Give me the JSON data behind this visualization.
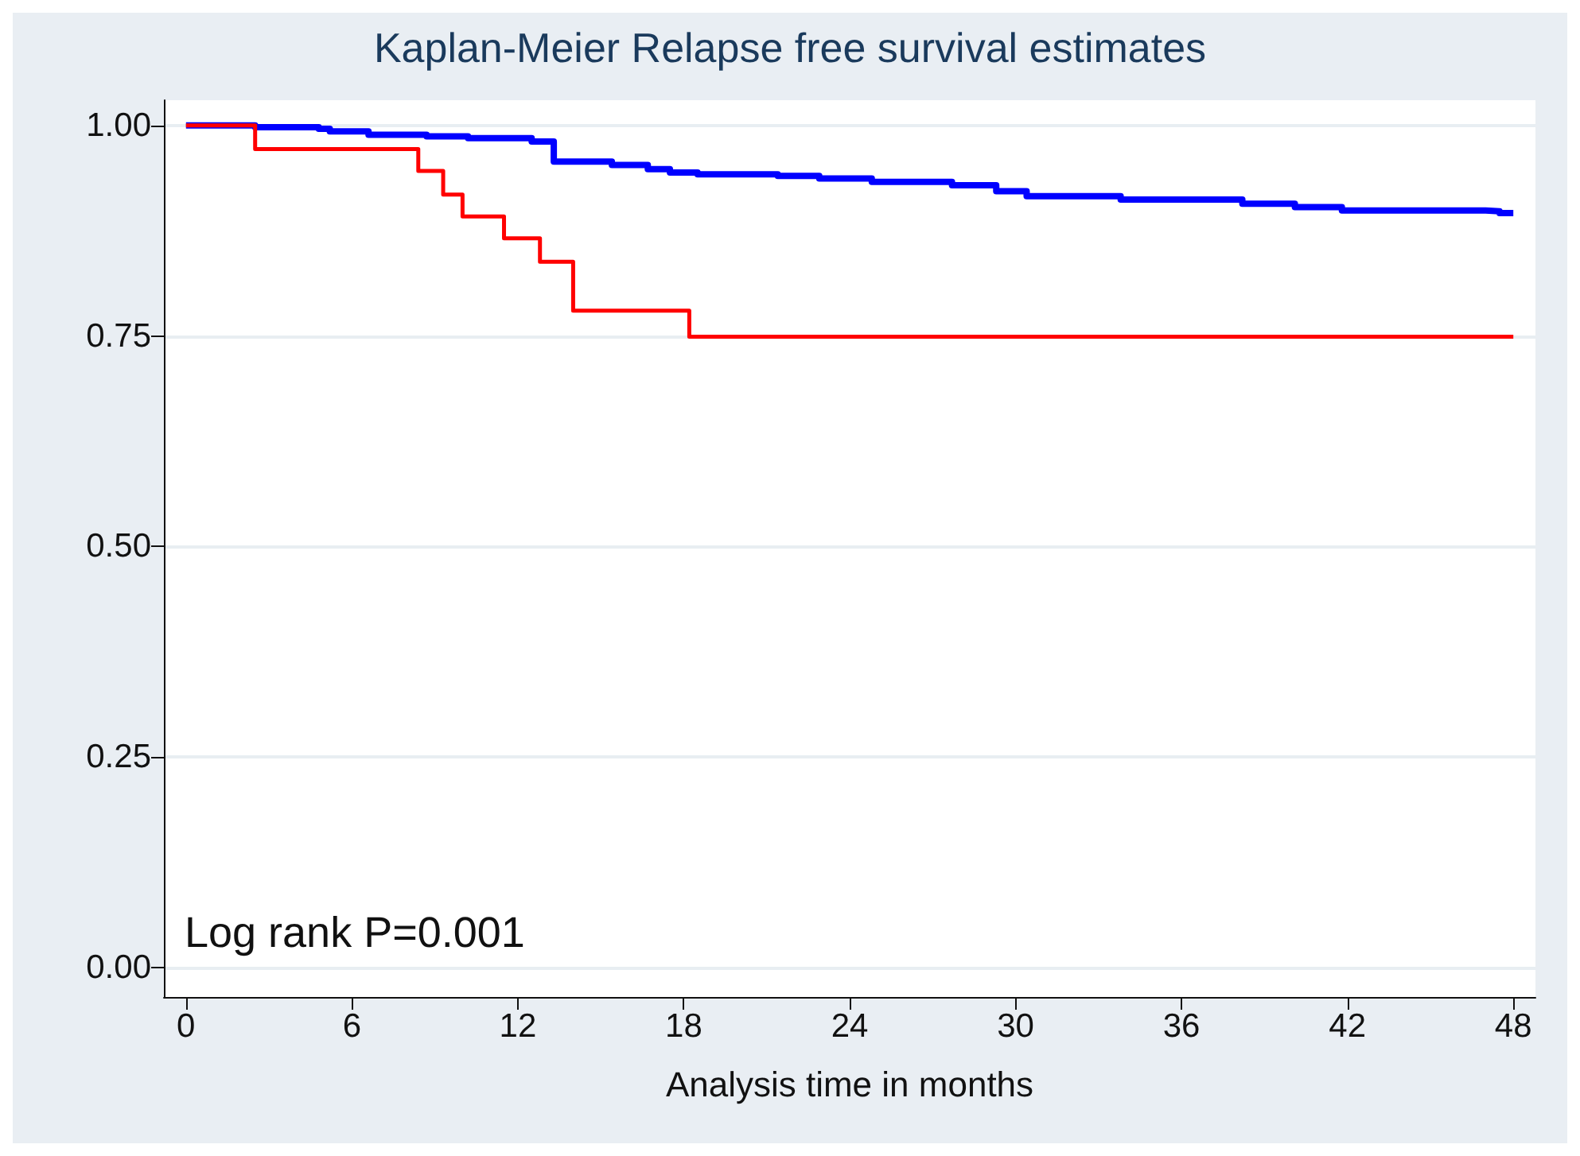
{
  "chart_data": {
    "type": "step",
    "title": "Kaplan-Meier Relapse free survival estimates",
    "xlabel": "Analysis time in months",
    "annotations": [
      "Log rank P=0.001"
    ],
    "series": [
      {
        "color": "#0000ff",
        "x": [
          0,
          2.5,
          4.8,
          5.2,
          6.6,
          8.7,
          10.2,
          12.5,
          13.3,
          15.4,
          16.7,
          17.5,
          18.5,
          21.4,
          22.9,
          24.8,
          27.7,
          29.3,
          30.4,
          33.8,
          38.2,
          40.1,
          41.8,
          47,
          47.5,
          48
        ],
        "values": [
          1,
          0.998,
          0.996,
          0.993,
          0.989,
          0.987,
          0.985,
          0.981,
          0.957,
          0.953,
          0.948,
          0.944,
          0.942,
          0.94,
          0.937,
          0.933,
          0.929,
          0.922,
          0.916,
          0.912,
          0.907,
          0.903,
          0.899,
          0.898,
          0.896,
          0.896
        ]
      },
      {
        "color": "#ff0000",
        "x": [
          0,
          2.5,
          8.4,
          9.3,
          10,
          11.5,
          12.8,
          14,
          18.2,
          48
        ],
        "values": [
          1,
          0.972,
          0.946,
          0.918,
          0.892,
          0.866,
          0.838,
          0.78,
          0.749,
          0.749
        ]
      }
    ],
    "xlim": [
      -0.8,
      48.8
    ],
    "xticks": [
      0,
      6,
      12,
      18,
      24,
      30,
      36,
      42,
      48
    ],
    "ylim": [
      -0.035,
      1.03
    ],
    "yticks": [
      {
        "value": 0,
        "label": "0.00"
      },
      {
        "value": 0.25,
        "label": "0.25"
      },
      {
        "value": 0.5,
        "label": "0.50"
      },
      {
        "value": 0.75,
        "label": "0.75"
      },
      {
        "value": 1,
        "label": "1.00"
      }
    ],
    "grid": "y",
    "marker": "none",
    "line_style": "solid"
  }
}
